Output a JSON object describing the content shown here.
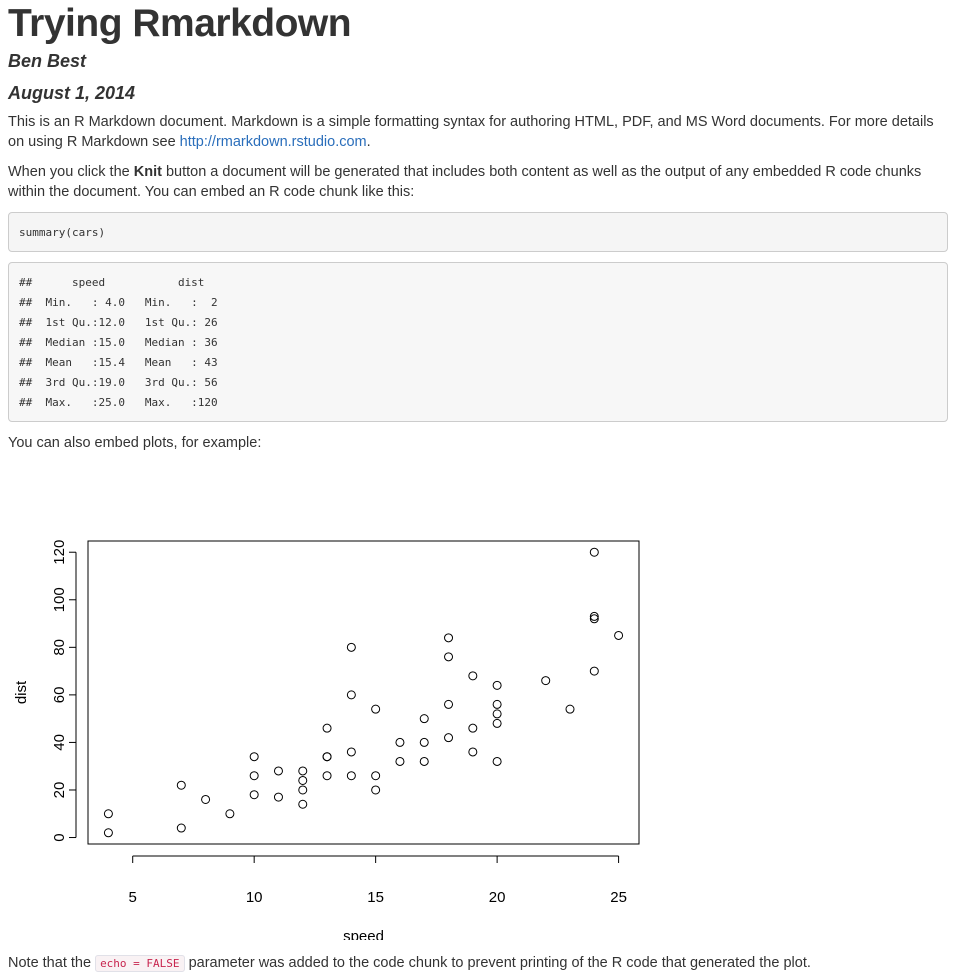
{
  "doc": {
    "title": "Trying Rmarkdown",
    "author": "Ben Best",
    "date": "August 1, 2014",
    "p1_text": "This is an R Markdown document. Markdown is a simple formatting syntax for authoring HTML, PDF, and MS Word documents. For more details on using R Markdown see ",
    "p1_link": "http://rmarkdown.rstudio.com",
    "p1_end": ".",
    "p2_start": "When you click the ",
    "p2_bold": "Knit",
    "p2_end": " button a document will be generated that includes both content as well as the output of any embedded R code chunks within the document. You can embed an R code chunk like this:",
    "p3_text": "You can also embed plots, for example:",
    "p4_start": "Note that the ",
    "p4_code": "echo = FALSE",
    "p4_end": " parameter was added to the code chunk to prevent printing of the R code that generated the plot."
  },
  "code_source": "summary(cars)",
  "code_output": [
    "##      speed           dist       ",
    "##  Min.   : 4.0   Min.   :  2  ",
    "##  1st Qu.:12.0   1st Qu.: 26  ",
    "##  Median :15.0   Median : 36  ",
    "##  Mean   :15.4   Mean   : 43  ",
    "##  3rd Qu.:19.0   3rd Qu.: 56  ",
    "##  Max.   :25.0   Max.   :120  "
  ],
  "chart_data": {
    "type": "scatter",
    "title": "",
    "xlabel": "speed",
    "ylabel": "dist",
    "xlim": [
      3.16,
      25.84
    ],
    "ylim": [
      -2.72,
      124.72
    ],
    "xticks": [
      5,
      10,
      15,
      20,
      25
    ],
    "yticks": [
      0,
      20,
      40,
      60,
      80,
      100,
      120
    ],
    "grid": false,
    "points": [
      [
        4,
        2
      ],
      [
        4,
        10
      ],
      [
        7,
        4
      ],
      [
        7,
        22
      ],
      [
        8,
        16
      ],
      [
        9,
        10
      ],
      [
        10,
        18
      ],
      [
        10,
        26
      ],
      [
        10,
        34
      ],
      [
        11,
        17
      ],
      [
        11,
        28
      ],
      [
        12,
        14
      ],
      [
        12,
        20
      ],
      [
        12,
        24
      ],
      [
        12,
        28
      ],
      [
        13,
        26
      ],
      [
        13,
        34
      ],
      [
        13,
        34
      ],
      [
        13,
        46
      ],
      [
        14,
        26
      ],
      [
        14,
        36
      ],
      [
        14,
        60
      ],
      [
        14,
        80
      ],
      [
        15,
        20
      ],
      [
        15,
        26
      ],
      [
        15,
        54
      ],
      [
        16,
        32
      ],
      [
        16,
        40
      ],
      [
        17,
        32
      ],
      [
        17,
        40
      ],
      [
        17,
        50
      ],
      [
        18,
        42
      ],
      [
        18,
        56
      ],
      [
        18,
        76
      ],
      [
        18,
        84
      ],
      [
        19,
        36
      ],
      [
        19,
        46
      ],
      [
        19,
        68
      ],
      [
        20,
        32
      ],
      [
        20,
        48
      ],
      [
        20,
        52
      ],
      [
        20,
        56
      ],
      [
        20,
        64
      ],
      [
        22,
        66
      ],
      [
        23,
        54
      ],
      [
        24,
        70
      ],
      [
        24,
        92
      ],
      [
        24,
        93
      ],
      [
        24,
        120
      ],
      [
        25,
        85
      ]
    ]
  }
}
